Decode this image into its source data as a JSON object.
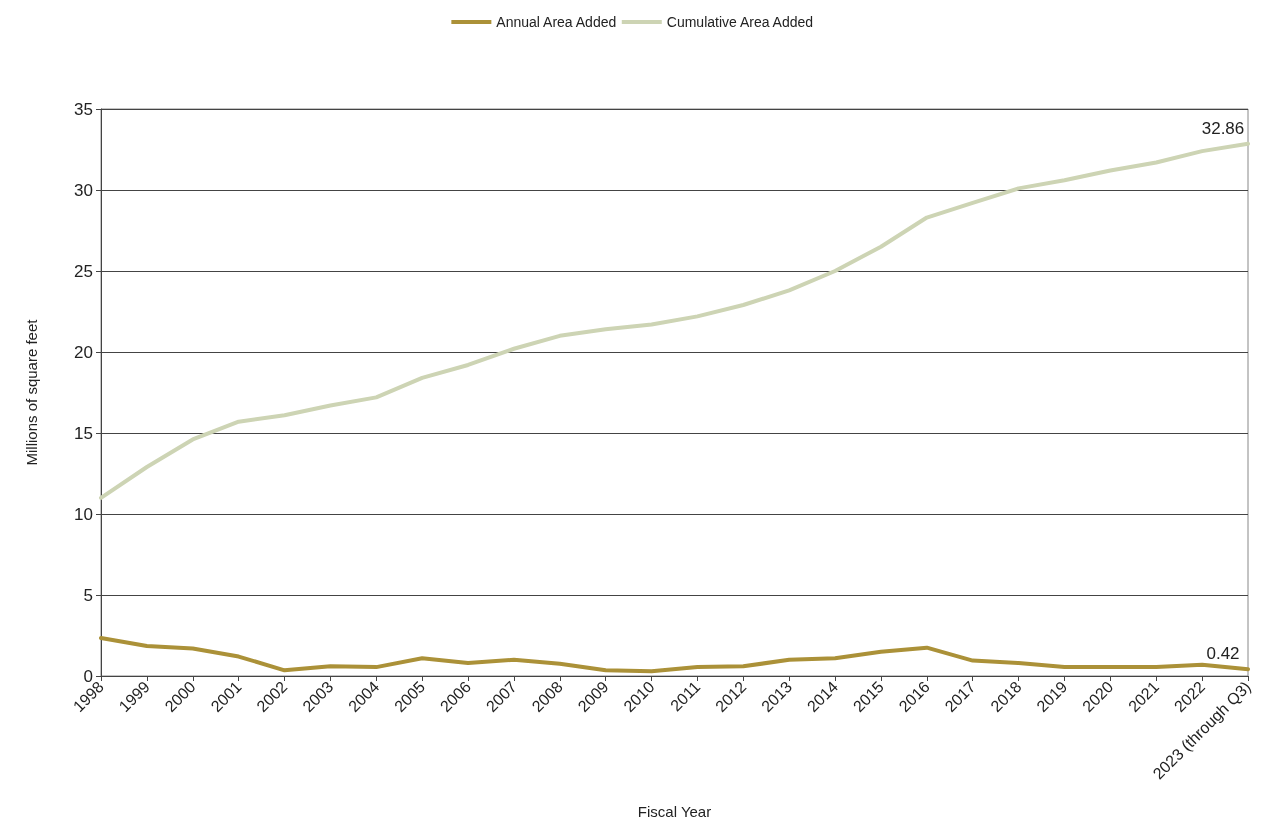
{
  "chart_data": {
    "type": "line",
    "xlabel": "Fiscal Year",
    "ylabel": "Millions of square feet",
    "categories": [
      "1998",
      "1999",
      "2000",
      "2001",
      "2002",
      "2003",
      "2004",
      "2005",
      "2006",
      "2007",
      "2008",
      "2009",
      "2010",
      "2011",
      "2012",
      "2013",
      "2014",
      "2015",
      "2016",
      "2017",
      "2018",
      "2019",
      "2020",
      "2021",
      "2022",
      "2023 (through Q3)"
    ],
    "series": [
      {
        "name": "Annual Area Added",
        "color": "#ab9138",
        "values": [
          2.35,
          1.85,
          1.7,
          1.2,
          0.35,
          0.6,
          0.55,
          1.1,
          0.8,
          1.0,
          0.75,
          0.35,
          0.3,
          0.55,
          0.6,
          1.0,
          1.1,
          1.5,
          1.75,
          0.95,
          0.8,
          0.55,
          0.55,
          0.55,
          0.7,
          0.42
        ],
        "value_labels": [
          null,
          null,
          null,
          null,
          null,
          null,
          null,
          null,
          null,
          null,
          null,
          null,
          null,
          null,
          null,
          null,
          null,
          null,
          null,
          null,
          null,
          null,
          null,
          null,
          null,
          "0.42"
        ]
      },
      {
        "name": "Cumulative Area Added",
        "color": "#cdd4b4",
        "values": [
          11.0,
          12.9,
          14.6,
          15.7,
          16.1,
          16.7,
          17.2,
          18.4,
          19.2,
          20.2,
          21.0,
          21.4,
          21.7,
          22.2,
          22.9,
          23.8,
          25.0,
          26.5,
          28.3,
          29.2,
          30.1,
          30.6,
          31.2,
          31.7,
          32.4,
          32.86
        ],
        "value_labels": [
          null,
          null,
          null,
          null,
          null,
          null,
          null,
          null,
          null,
          null,
          null,
          null,
          null,
          null,
          null,
          null,
          null,
          null,
          null,
          null,
          null,
          null,
          null,
          null,
          null,
          "32.86"
        ]
      }
    ],
    "ylim": [
      0,
      35
    ],
    "yticks": [
      0,
      5,
      10,
      15,
      20,
      25,
      30,
      35
    ],
    "grid": "y",
    "legend": "top",
    "marker": "none",
    "line_style": "solid"
  }
}
